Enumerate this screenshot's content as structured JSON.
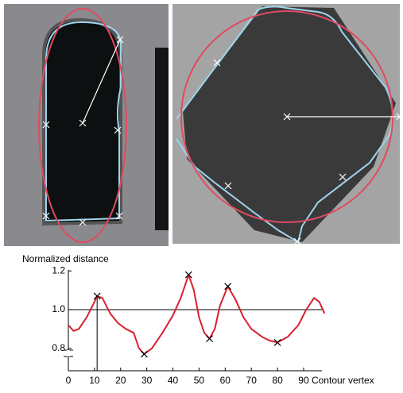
{
  "chart_data": {
    "type": "line",
    "ylabel": "Normalized distance",
    "xlabel": "Contour vertex",
    "x": [
      0,
      2,
      4,
      7,
      10,
      11,
      13,
      16,
      19,
      22,
      25,
      27,
      29,
      32,
      36,
      40,
      43,
      46,
      48,
      50,
      52,
      54,
      56,
      58,
      61,
      64,
      67,
      70,
      74,
      77,
      80,
      84,
      88,
      91,
      94,
      96,
      98
    ],
    "values": [
      0.92,
      0.89,
      0.9,
      0.96,
      1.04,
      1.07,
      1.06,
      0.98,
      0.93,
      0.9,
      0.88,
      0.8,
      0.77,
      0.8,
      0.88,
      0.97,
      1.06,
      1.18,
      1.1,
      0.96,
      0.88,
      0.85,
      0.9,
      1.02,
      1.12,
      1.05,
      0.96,
      0.9,
      0.86,
      0.84,
      0.83,
      0.86,
      0.92,
      1.0,
      1.06,
      1.04,
      0.98
    ],
    "color": "#d8202e",
    "markers": {
      "x": [
        11,
        29,
        46,
        54,
        61,
        80
      ],
      "values": [
        1.07,
        0.77,
        1.18,
        0.85,
        1.12,
        0.83
      ]
    },
    "hline": 1.0,
    "vline": 11,
    "xlim": [
      0,
      97
    ],
    "ylim": [
      0.684,
      1.205
    ],
    "xticks": [
      0,
      10,
      20,
      30,
      40,
      50,
      60,
      70,
      80,
      90
    ],
    "yticks": [
      0.8,
      {
        "value": 1.0,
        "label": "1.0"
      },
      1.2
    ]
  }
}
